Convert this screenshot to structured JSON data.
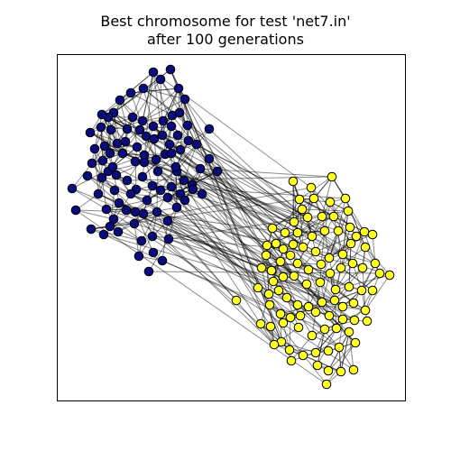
{
  "chart_data": {
    "type": "scatter",
    "title_line1": "Best chromosome for test 'net7.in'",
    "title_line2": "after 100 generations",
    "grid": false,
    "xlabel": "",
    "ylabel": "",
    "colors": {
      "group1": "#0b0b80",
      "group2": "#ffff22",
      "edge": "#000000",
      "frame": "#000000"
    },
    "series": [
      {
        "color": "group1",
        "points": [
          [
            170,
            80
          ],
          [
            189,
            77
          ],
          [
            178,
            88
          ],
          [
            159,
            98
          ],
          [
            145,
            103
          ],
          [
            133,
            111
          ],
          [
            126,
            125
          ],
          [
            120,
            130
          ],
          [
            113,
            127
          ],
          [
            100,
            147
          ],
          [
            112,
            141
          ],
          [
            123,
            144
          ],
          [
            130,
            159
          ],
          [
            116,
            162
          ],
          [
            105,
            165
          ],
          [
            122,
            170
          ],
          [
            136,
            170
          ],
          [
            152,
            163
          ],
          [
            162,
            151
          ],
          [
            170,
            140
          ],
          [
            181,
            134
          ],
          [
            191,
            128
          ],
          [
            198,
            98
          ],
          [
            205,
            110
          ],
          [
            199,
            125
          ],
          [
            190,
            140
          ],
          [
            180,
            150
          ],
          [
            171,
            154
          ],
          [
            158,
            134
          ],
          [
            147,
            130
          ],
          [
            141,
            143
          ],
          [
            139,
            157
          ],
          [
            150,
            179
          ],
          [
            160,
            172
          ],
          [
            173,
            177
          ],
          [
            183,
            171
          ],
          [
            188,
            160
          ],
          [
            197,
            150
          ],
          [
            208,
            139
          ],
          [
            209,
            156
          ],
          [
            200,
            166
          ],
          [
            190,
            170
          ],
          [
            218,
            160
          ],
          [
            232,
            143
          ],
          [
            232,
            176
          ],
          [
            241,
            190
          ],
          [
            222,
            187
          ],
          [
            213,
            205
          ],
          [
            204,
            200
          ],
          [
            196,
            190
          ],
          [
            190,
            207
          ],
          [
            200,
            215
          ],
          [
            186,
            219
          ],
          [
            178,
            211
          ],
          [
            169,
            206
          ],
          [
            158,
            196
          ],
          [
            151,
            210
          ],
          [
            141,
            200
          ],
          [
            129,
            194
          ],
          [
            120,
            190
          ],
          [
            114,
            178
          ],
          [
            102,
            181
          ],
          [
            113,
            197
          ],
          [
            127,
            211
          ],
          [
            132,
            225
          ],
          [
            140,
            233
          ],
          [
            126,
            243
          ],
          [
            118,
            232
          ],
          [
            109,
            215
          ],
          [
            97,
            195
          ],
          [
            80,
            209
          ],
          [
            84,
            233
          ],
          [
            101,
            254
          ],
          [
            115,
            260
          ],
          [
            122,
            251
          ],
          [
            131,
            257
          ],
          [
            149,
            248
          ],
          [
            159,
            237
          ],
          [
            163,
            222
          ],
          [
            174,
            235
          ],
          [
            186,
            245
          ],
          [
            196,
            230
          ],
          [
            205,
            222
          ],
          [
            214,
            210
          ],
          [
            224,
            215
          ],
          [
            169,
            262
          ],
          [
            157,
            267
          ],
          [
            187,
            265
          ],
          [
            154,
            284
          ],
          [
            170,
            280
          ],
          [
            165,
            301
          ],
          [
            180,
            289
          ],
          [
            145,
            215
          ],
          [
            150,
            235
          ],
          [
            160,
            180
          ],
          [
            175,
            190
          ],
          [
            155,
            144
          ],
          [
            125,
            185
          ],
          [
            195,
            185
          ]
        ]
      },
      {
        "color": "group2",
        "points": [
          [
            325,
            201
          ],
          [
            345,
            208
          ],
          [
            368,
            196
          ],
          [
            332,
            221
          ],
          [
            348,
            220
          ],
          [
            366,
            224
          ],
          [
            383,
            220
          ],
          [
            370,
            240
          ],
          [
            386,
            234
          ],
          [
            357,
            240
          ],
          [
            341,
            241
          ],
          [
            326,
            246
          ],
          [
            302,
            253
          ],
          [
            316,
            258
          ],
          [
            330,
            258
          ],
          [
            346,
            262
          ],
          [
            360,
            256
          ],
          [
            375,
            256
          ],
          [
            388,
            252
          ],
          [
            395,
            262
          ],
          [
            404,
            257
          ],
          [
            413,
            260
          ],
          [
            389,
            270
          ],
          [
            405,
            274
          ],
          [
            380,
            282
          ],
          [
            365,
            286
          ],
          [
            350,
            279
          ],
          [
            336,
            274
          ],
          [
            325,
            271
          ],
          [
            314,
            276
          ],
          [
            306,
            270
          ],
          [
            296,
            272
          ],
          [
            295,
            283
          ],
          [
            290,
            297
          ],
          [
            301,
            300
          ],
          [
            311,
            290
          ],
          [
            322,
            283
          ],
          [
            330,
            292
          ],
          [
            342,
            299
          ],
          [
            356,
            293
          ],
          [
            366,
            303
          ],
          [
            378,
            297
          ],
          [
            391,
            292
          ],
          [
            402,
            297
          ],
          [
            416,
            292
          ],
          [
            432,
            305
          ],
          [
            421,
            303
          ],
          [
            413,
            322
          ],
          [
            401,
            322
          ],
          [
            387,
            318
          ],
          [
            372,
            321
          ],
          [
            355,
            313
          ],
          [
            340,
            315
          ],
          [
            326,
            306
          ],
          [
            314,
            307
          ],
          [
            303,
            312
          ],
          [
            286,
            319
          ],
          [
            298,
            326
          ],
          [
            309,
            322
          ],
          [
            318,
            330
          ],
          [
            330,
            338
          ],
          [
            342,
            340
          ],
          [
            357,
            335
          ],
          [
            371,
            333
          ],
          [
            380,
            340
          ],
          [
            392,
            336
          ],
          [
            405,
            344
          ],
          [
            407,
            356
          ],
          [
            393,
            355
          ],
          [
            380,
            354
          ],
          [
            365,
            350
          ],
          [
            350,
            346
          ],
          [
            333,
            350
          ],
          [
            322,
            352
          ],
          [
            311,
            348
          ],
          [
            299,
            338
          ],
          [
            289,
            359
          ],
          [
            300,
            362
          ],
          [
            314,
            358
          ],
          [
            331,
            363
          ],
          [
            346,
            372
          ],
          [
            360,
            365
          ],
          [
            373,
            364
          ],
          [
            387,
            368
          ],
          [
            394,
            380
          ],
          [
            376,
            385
          ],
          [
            364,
            389
          ],
          [
            350,
            391
          ],
          [
            336,
            394
          ],
          [
            321,
            388
          ],
          [
            312,
            379
          ],
          [
            304,
            382
          ],
          [
            352,
            405
          ],
          [
            323,
            400
          ],
          [
            364,
            411
          ],
          [
            378,
            412
          ],
          [
            392,
            410
          ],
          [
            362,
            426
          ],
          [
            262,
            333
          ],
          [
            335,
            232
          ]
        ]
      }
    ]
  }
}
